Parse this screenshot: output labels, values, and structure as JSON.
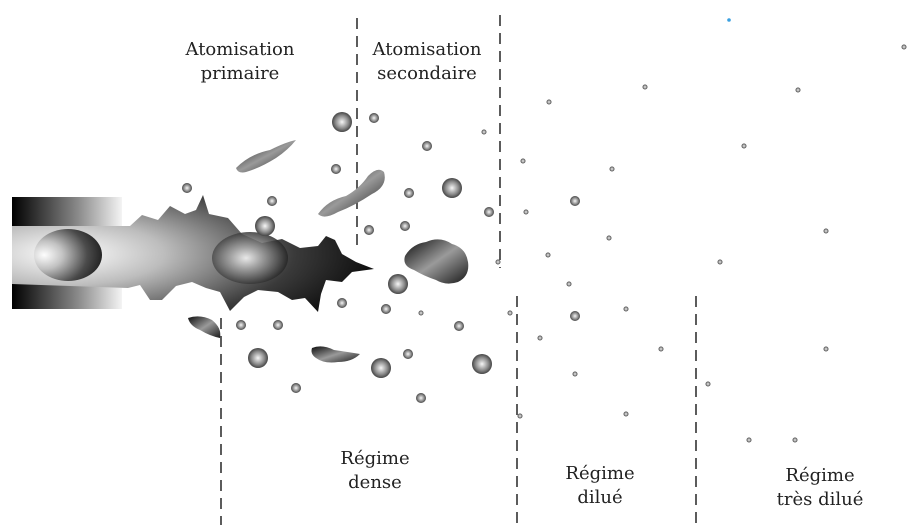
{
  "labels": {
    "primary": [
      "Atomisation",
      "primaire"
    ],
    "secondary": [
      "Atomisation",
      "secondaire"
    ],
    "dense": [
      "Régime",
      "dense"
    ],
    "dilute": [
      "Régime",
      "dilué"
    ],
    "very_dilute": [
      "Régime",
      "très dilué"
    ]
  },
  "colors": {
    "dashed_line": "#333333",
    "droplet_dark": "#2a2a2a",
    "droplet_light": "#f2f2f2",
    "text": "#222222",
    "stray_dot": "#3aa0e0"
  }
}
